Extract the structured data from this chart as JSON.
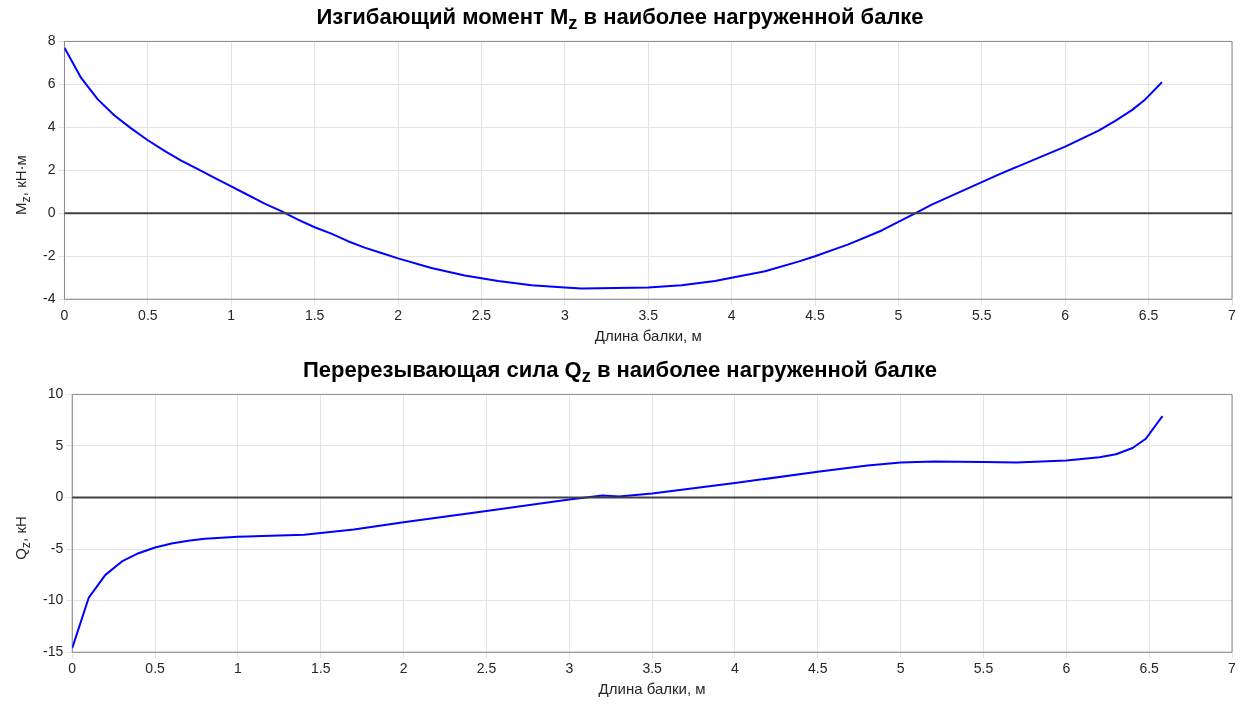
{
  "chart_data": [
    {
      "type": "line",
      "title": "Изгибающий момент M$_{z}$ в наиболее нагруженной балке",
      "xlabel": "Длина балки, м",
      "ylabel": "M$_{z}$, кН·м",
      "xlim": [
        0,
        7
      ],
      "xticks": [
        0,
        0.5,
        1,
        1.5,
        2,
        2.5,
        3,
        3.5,
        4,
        4.5,
        5,
        5.5,
        6,
        6.5,
        7
      ],
      "ylim": [
        -4,
        8
      ],
      "yticks": [
        -4,
        -2,
        0,
        2,
        4,
        6,
        8
      ],
      "grid": true,
      "legend": false,
      "marker": "none",
      "line_style": "solid",
      "ref_lines": [
        {
          "axis": "y",
          "value": 0,
          "color": "#404040"
        }
      ],
      "series": [
        {
          "color": "#0000ff",
          "x": [
            0,
            0.1,
            0.2,
            0.3,
            0.4,
            0.5,
            0.6,
            0.7,
            0.8,
            0.9,
            1.0,
            1.1,
            1.2,
            1.3,
            1.4,
            1.5,
            1.6,
            1.7,
            1.8,
            1.9,
            2.0,
            2.2,
            2.4,
            2.6,
            2.8,
            3.0,
            3.1,
            3.3,
            3.5,
            3.7,
            3.9,
            4.0,
            4.2,
            4.4,
            4.5,
            4.7,
            4.9,
            5.0,
            5.1,
            5.2,
            5.4,
            5.6,
            5.8,
            6.0,
            6.2,
            6.3,
            6.4,
            6.48,
            6.58
          ],
          "values": [
            7.7,
            6.3,
            5.3,
            4.55,
            3.95,
            3.4,
            2.9,
            2.45,
            2.05,
            1.65,
            1.25,
            0.85,
            0.45,
            0.1,
            -0.3,
            -0.65,
            -0.95,
            -1.3,
            -1.6,
            -1.85,
            -2.1,
            -2.55,
            -2.9,
            -3.15,
            -3.35,
            -3.45,
            -3.5,
            -3.48,
            -3.45,
            -3.35,
            -3.15,
            -3.0,
            -2.7,
            -2.25,
            -2.0,
            -1.45,
            -0.8,
            -0.4,
            0.0,
            0.4,
            1.1,
            1.8,
            2.45,
            3.1,
            3.85,
            4.3,
            4.8,
            5.3,
            6.1
          ]
        }
      ]
    },
    {
      "type": "line",
      "title": "Перерезывающая сила Q$_{z}$ в наиболее нагруженной балке",
      "xlabel": "Длина балки, м",
      "ylabel": "Q$_{z}$, кН",
      "xlim": [
        0,
        7
      ],
      "xticks": [
        0,
        0.5,
        1,
        1.5,
        2,
        2.5,
        3,
        3.5,
        4,
        4.5,
        5,
        5.5,
        6,
        6.5,
        7
      ],
      "ylim": [
        -15,
        10
      ],
      "yticks": [
        -15,
        -10,
        -5,
        0,
        5,
        10
      ],
      "grid": true,
      "legend": false,
      "marker": "none",
      "line_style": "solid",
      "ref_lines": [
        {
          "axis": "y",
          "value": 0,
          "color": "#404040"
        }
      ],
      "series": [
        {
          "color": "#0000ff",
          "x": [
            0,
            0.1,
            0.2,
            0.3,
            0.4,
            0.5,
            0.6,
            0.7,
            0.8,
            1.0,
            1.2,
            1.4,
            1.5,
            1.7,
            2.0,
            2.5,
            3.0,
            3.2,
            3.3,
            3.5,
            4.0,
            4.5,
            4.8,
            5.0,
            5.2,
            5.5,
            5.7,
            6.0,
            6.2,
            6.3,
            6.4,
            6.48,
            6.58
          ],
          "values": [
            -14.6,
            -9.7,
            -7.5,
            -6.2,
            -5.4,
            -4.85,
            -4.45,
            -4.2,
            -4.0,
            -3.8,
            -3.7,
            -3.6,
            -3.45,
            -3.1,
            -2.4,
            -1.3,
            -0.2,
            0.2,
            0.1,
            0.4,
            1.4,
            2.5,
            3.1,
            3.4,
            3.5,
            3.45,
            3.4,
            3.6,
            3.9,
            4.2,
            4.8,
            5.7,
            7.9
          ]
        }
      ]
    }
  ]
}
